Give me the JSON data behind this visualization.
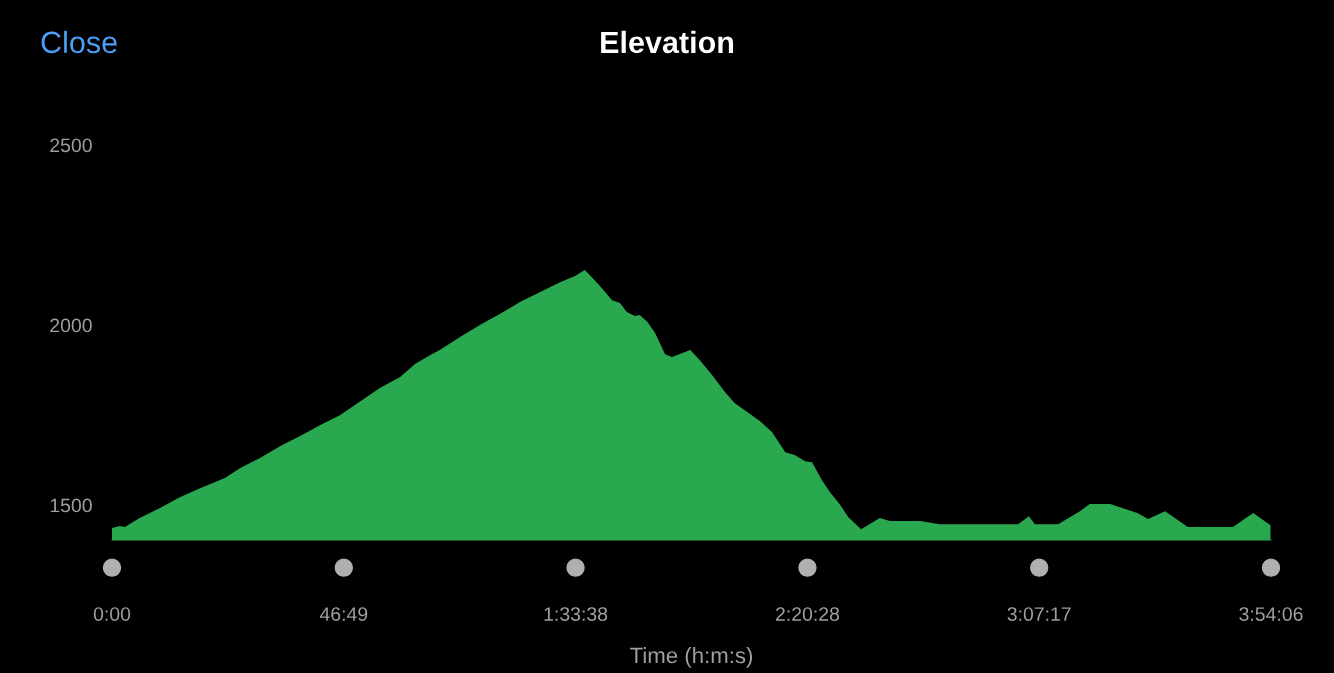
{
  "chart_data": {
    "type": "area",
    "title": "Elevation",
    "xlabel": "Time (h:m:s)",
    "annotations": [
      "Close"
    ],
    "x": [
      0,
      1.6,
      2.6,
      5.6,
      9.7,
      13.7,
      17.8,
      22.8,
      25.9,
      29.9,
      34.0,
      38.0,
      42.0,
      46.1,
      48.1,
      54.1,
      58.2,
      61.2,
      64.3,
      66.2,
      70.3,
      74.3,
      78.4,
      82.4,
      86.5,
      90.5,
      93.5,
      95.5,
      96.5,
      98.6,
      101.0,
      102.6,
      104.0,
      105.6,
      106.6,
      108.2,
      109.7,
      111.7,
      113.1,
      116.8,
      118.7,
      121.2,
      123.8,
      125.8,
      128.9,
      130.9,
      133.3,
      136.0,
      137.9,
      140.0,
      141.4,
      143.4,
      145.0,
      147.1,
      148.7,
      151.3,
      155.1,
      157.1,
      163.2,
      167.2,
      181.4,
      183.0,
      185.2,
      186.4,
      191.1,
      195.5,
      197.5,
      201.6,
      207.1,
      209.3,
      212.7,
      217.3,
      226.4,
      230.5,
      234.0
    ],
    "values": [
      1436,
      1442,
      1439,
      1464,
      1492,
      1522,
      1547,
      1575,
      1603,
      1631,
      1664,
      1692,
      1722,
      1750,
      1769,
      1825,
      1856,
      1892,
      1917,
      1931,
      1967,
      2000,
      2031,
      2064,
      2092,
      2119,
      2136,
      2153,
      2139,
      2108,
      2069,
      2061,
      2036,
      2025,
      2028,
      2008,
      1978,
      1919,
      1911,
      1931,
      1903,
      1861,
      1814,
      1783,
      1753,
      1733,
      1703,
      1647,
      1639,
      1622,
      1619,
      1569,
      1536,
      1500,
      1467,
      1433,
      1464,
      1456,
      1456,
      1447,
      1447,
      1447,
      1469,
      1447,
      1447,
      1483,
      1503,
      1503,
      1478,
      1461,
      1483,
      1439,
      1439,
      1478,
      1444
    ],
    "color": "#2aa84f",
    "xlim": [
      0,
      234.1
    ],
    "xticks": [
      {
        "value": 0,
        "label": "0:00"
      },
      {
        "value": 46.82,
        "label": "46:49"
      },
      {
        "value": 93.63,
        "label": "1:33:38"
      },
      {
        "value": 140.47,
        "label": "2:20:28"
      },
      {
        "value": 187.28,
        "label": "3:07:17"
      },
      {
        "value": 234.1,
        "label": "3:54:06"
      }
    ],
    "ylim": [
      1403,
      2500
    ],
    "yticks": [
      1500,
      2000,
      2500
    ],
    "grid": false
  }
}
